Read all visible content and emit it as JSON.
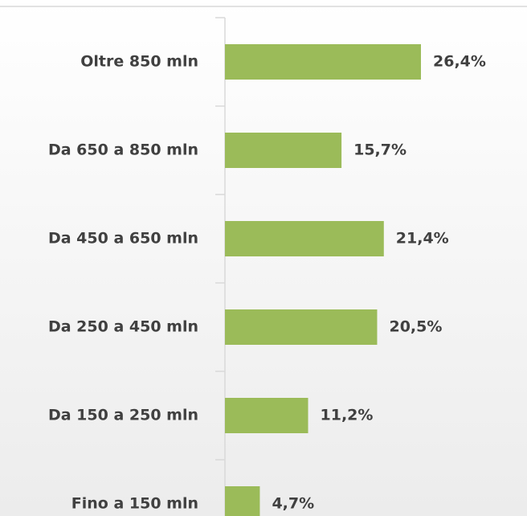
{
  "chart_data": {
    "type": "bar",
    "orientation": "horizontal",
    "categories": [
      "Oltre 850 mln",
      "Da 650 a 850 mln",
      "Da 450 a 650 mln",
      "Da 250 a 450 mln",
      "Da 150 a 250 mln",
      "Fino a 150 mln"
    ],
    "values": [
      26.4,
      15.7,
      21.4,
      20.5,
      11.2,
      4.7
    ],
    "value_labels": [
      "26,4%",
      "15,7%",
      "21,4%",
      "20,5%",
      "11,2%",
      "4,7%"
    ],
    "color": "#9bbb59"
  }
}
